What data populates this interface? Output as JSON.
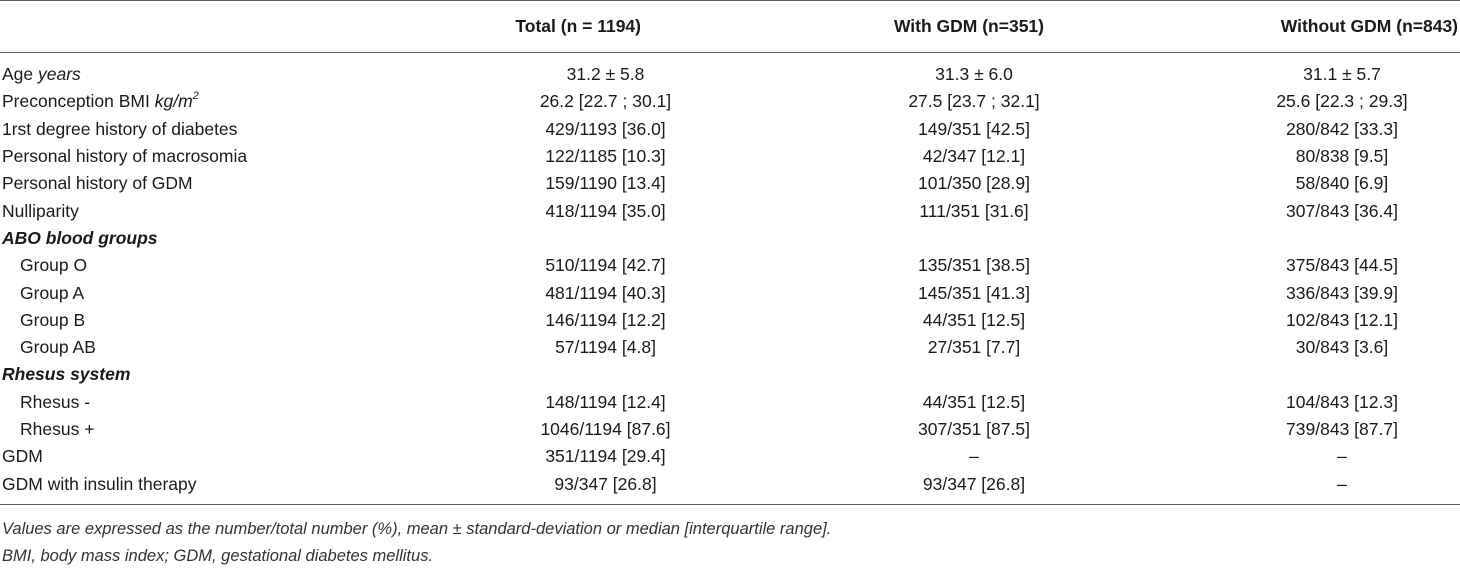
{
  "table": {
    "headers": [
      "",
      "Total (n = 1194)",
      "With GDM (n=351)",
      "Without GDM (n=843)"
    ],
    "rows": [
      {
        "kind": "data",
        "label": "Age ",
        "unit": "years",
        "sup": "",
        "values": [
          "31.2 ± 5.8",
          "31.3 ± 6.0",
          "31.1 ± 5.7"
        ]
      },
      {
        "kind": "data",
        "label": "Preconception BMI ",
        "unit": "kg/m",
        "sup": "2",
        "values": [
          "26.2 [22.7 ; 30.1]",
          "27.5 [23.7 ; 32.1]",
          "25.6 [22.3 ; 29.3]"
        ]
      },
      {
        "kind": "data",
        "label": "1rst degree history of diabetes",
        "unit": "",
        "sup": "",
        "values": [
          "429/1193 [36.0]",
          "149/351 [42.5]",
          "280/842 [33.3]"
        ]
      },
      {
        "kind": "data",
        "label": "Personal history of macrosomia",
        "unit": "",
        "sup": "",
        "values": [
          "122/1185 [10.3]",
          "42/347 [12.1]",
          "80/838 [9.5]"
        ]
      },
      {
        "kind": "data",
        "label": "Personal history of GDM",
        "unit": "",
        "sup": "",
        "values": [
          "159/1190 [13.4]",
          "101/350 [28.9]",
          "58/840 [6.9]"
        ]
      },
      {
        "kind": "data",
        "label": "Nulliparity",
        "unit": "",
        "sup": "",
        "values": [
          "418/1194 [35.0]",
          "111/351 [31.6]",
          "307/843 [36.4]"
        ]
      },
      {
        "kind": "group",
        "label": "ABO blood groups"
      },
      {
        "kind": "sub",
        "label": "Group O",
        "unit": "",
        "sup": "",
        "values": [
          "510/1194 [42.7]",
          "135/351 [38.5]",
          "375/843 [44.5]"
        ]
      },
      {
        "kind": "sub",
        "label": "Group A",
        "unit": "",
        "sup": "",
        "values": [
          "481/1194 [40.3]",
          "145/351 [41.3]",
          "336/843 [39.9]"
        ]
      },
      {
        "kind": "sub",
        "label": "Group B",
        "unit": "",
        "sup": "",
        "values": [
          "146/1194 [12.2]",
          "44/351 [12.5]",
          "102/843 [12.1]"
        ]
      },
      {
        "kind": "sub",
        "label": "Group AB",
        "unit": "",
        "sup": "",
        "values": [
          "57/1194 [4.8]",
          "27/351 [7.7]",
          "30/843 [3.6]"
        ]
      },
      {
        "kind": "group",
        "label": "Rhesus system"
      },
      {
        "kind": "sub",
        "label": "Rhesus -",
        "unit": "",
        "sup": "",
        "values": [
          "148/1194 [12.4]",
          "44/351 [12.5]",
          "104/843 [12.3]"
        ]
      },
      {
        "kind": "sub",
        "label": "Rhesus +",
        "unit": "",
        "sup": "",
        "values": [
          "1046/1194 [87.6]",
          "307/351 [87.5]",
          "739/843 [87.7]"
        ]
      },
      {
        "kind": "data",
        "label": "GDM",
        "unit": "",
        "sup": "",
        "values": [
          "351/1194 [29.4]",
          "–",
          "–"
        ]
      },
      {
        "kind": "data",
        "label": "GDM with insulin therapy",
        "unit": "",
        "sup": "",
        "values": [
          "93/347 [26.8]",
          "93/347 [26.8]",
          "–"
        ]
      }
    ]
  },
  "footnotes": [
    "Values are expressed as the number/total number (%), mean ± standard-deviation or median [interquartile range].",
    "BMI, body mass index; GDM, gestational diabetes mellitus."
  ]
}
